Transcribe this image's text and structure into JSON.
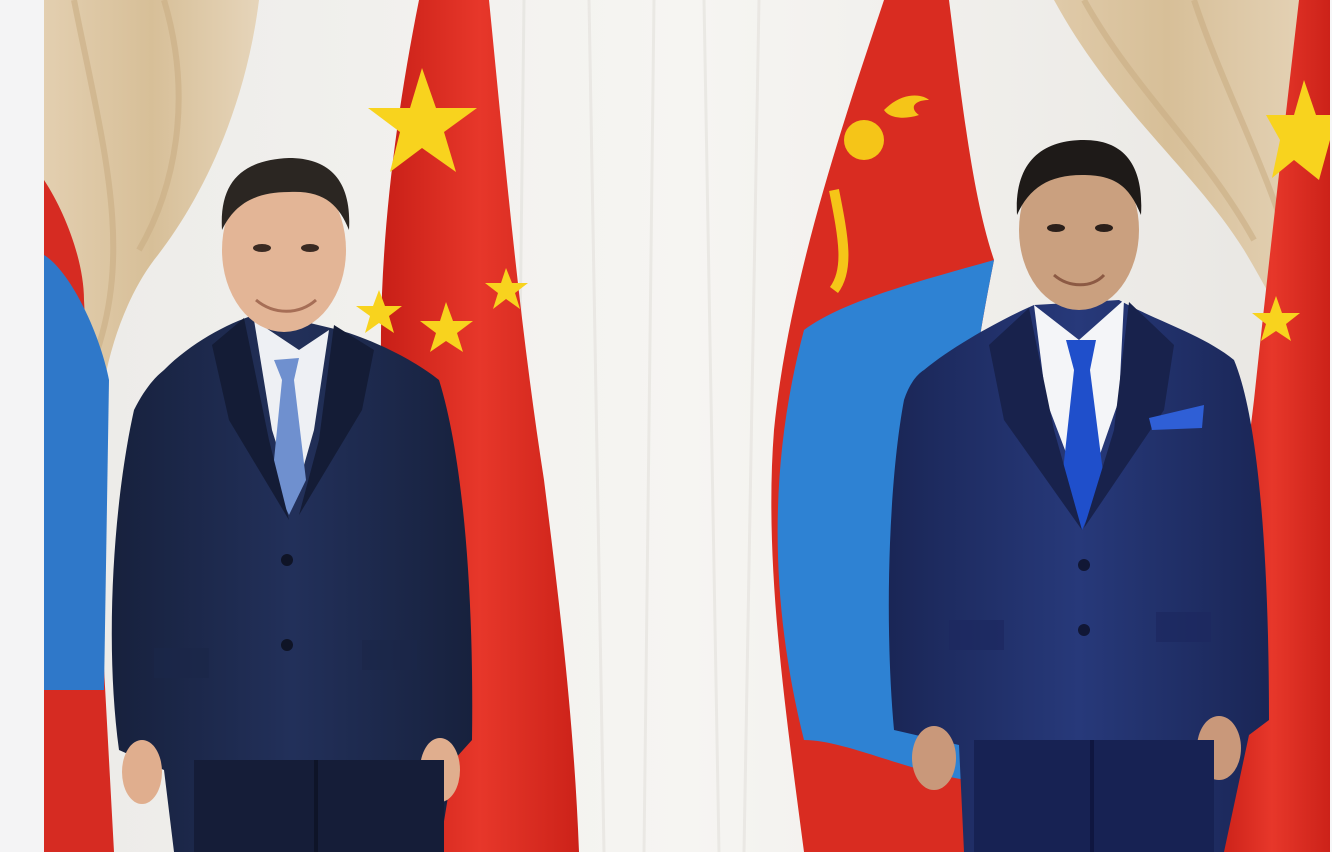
{
  "photo": {
    "subject": "two-men-in-suits-standing-before-flags",
    "flags": [
      "flag-of-china",
      "flag-of-mongolia",
      "flag-of-china",
      "flag-of-mongolia"
    ],
    "colors": {
      "curtain_white": "#f1efec",
      "curtain_beige": "#dcc7a6",
      "flag_red": "#de2a1f",
      "flag_blue": "#2f7fd0",
      "flag_gold": "#f7d21c",
      "suit_navy": "#1d2a4d",
      "suit_navy_right": "#1f2f6a",
      "tie_left": "#6c8fd0",
      "tie_right": "#1d4fc8"
    }
  }
}
